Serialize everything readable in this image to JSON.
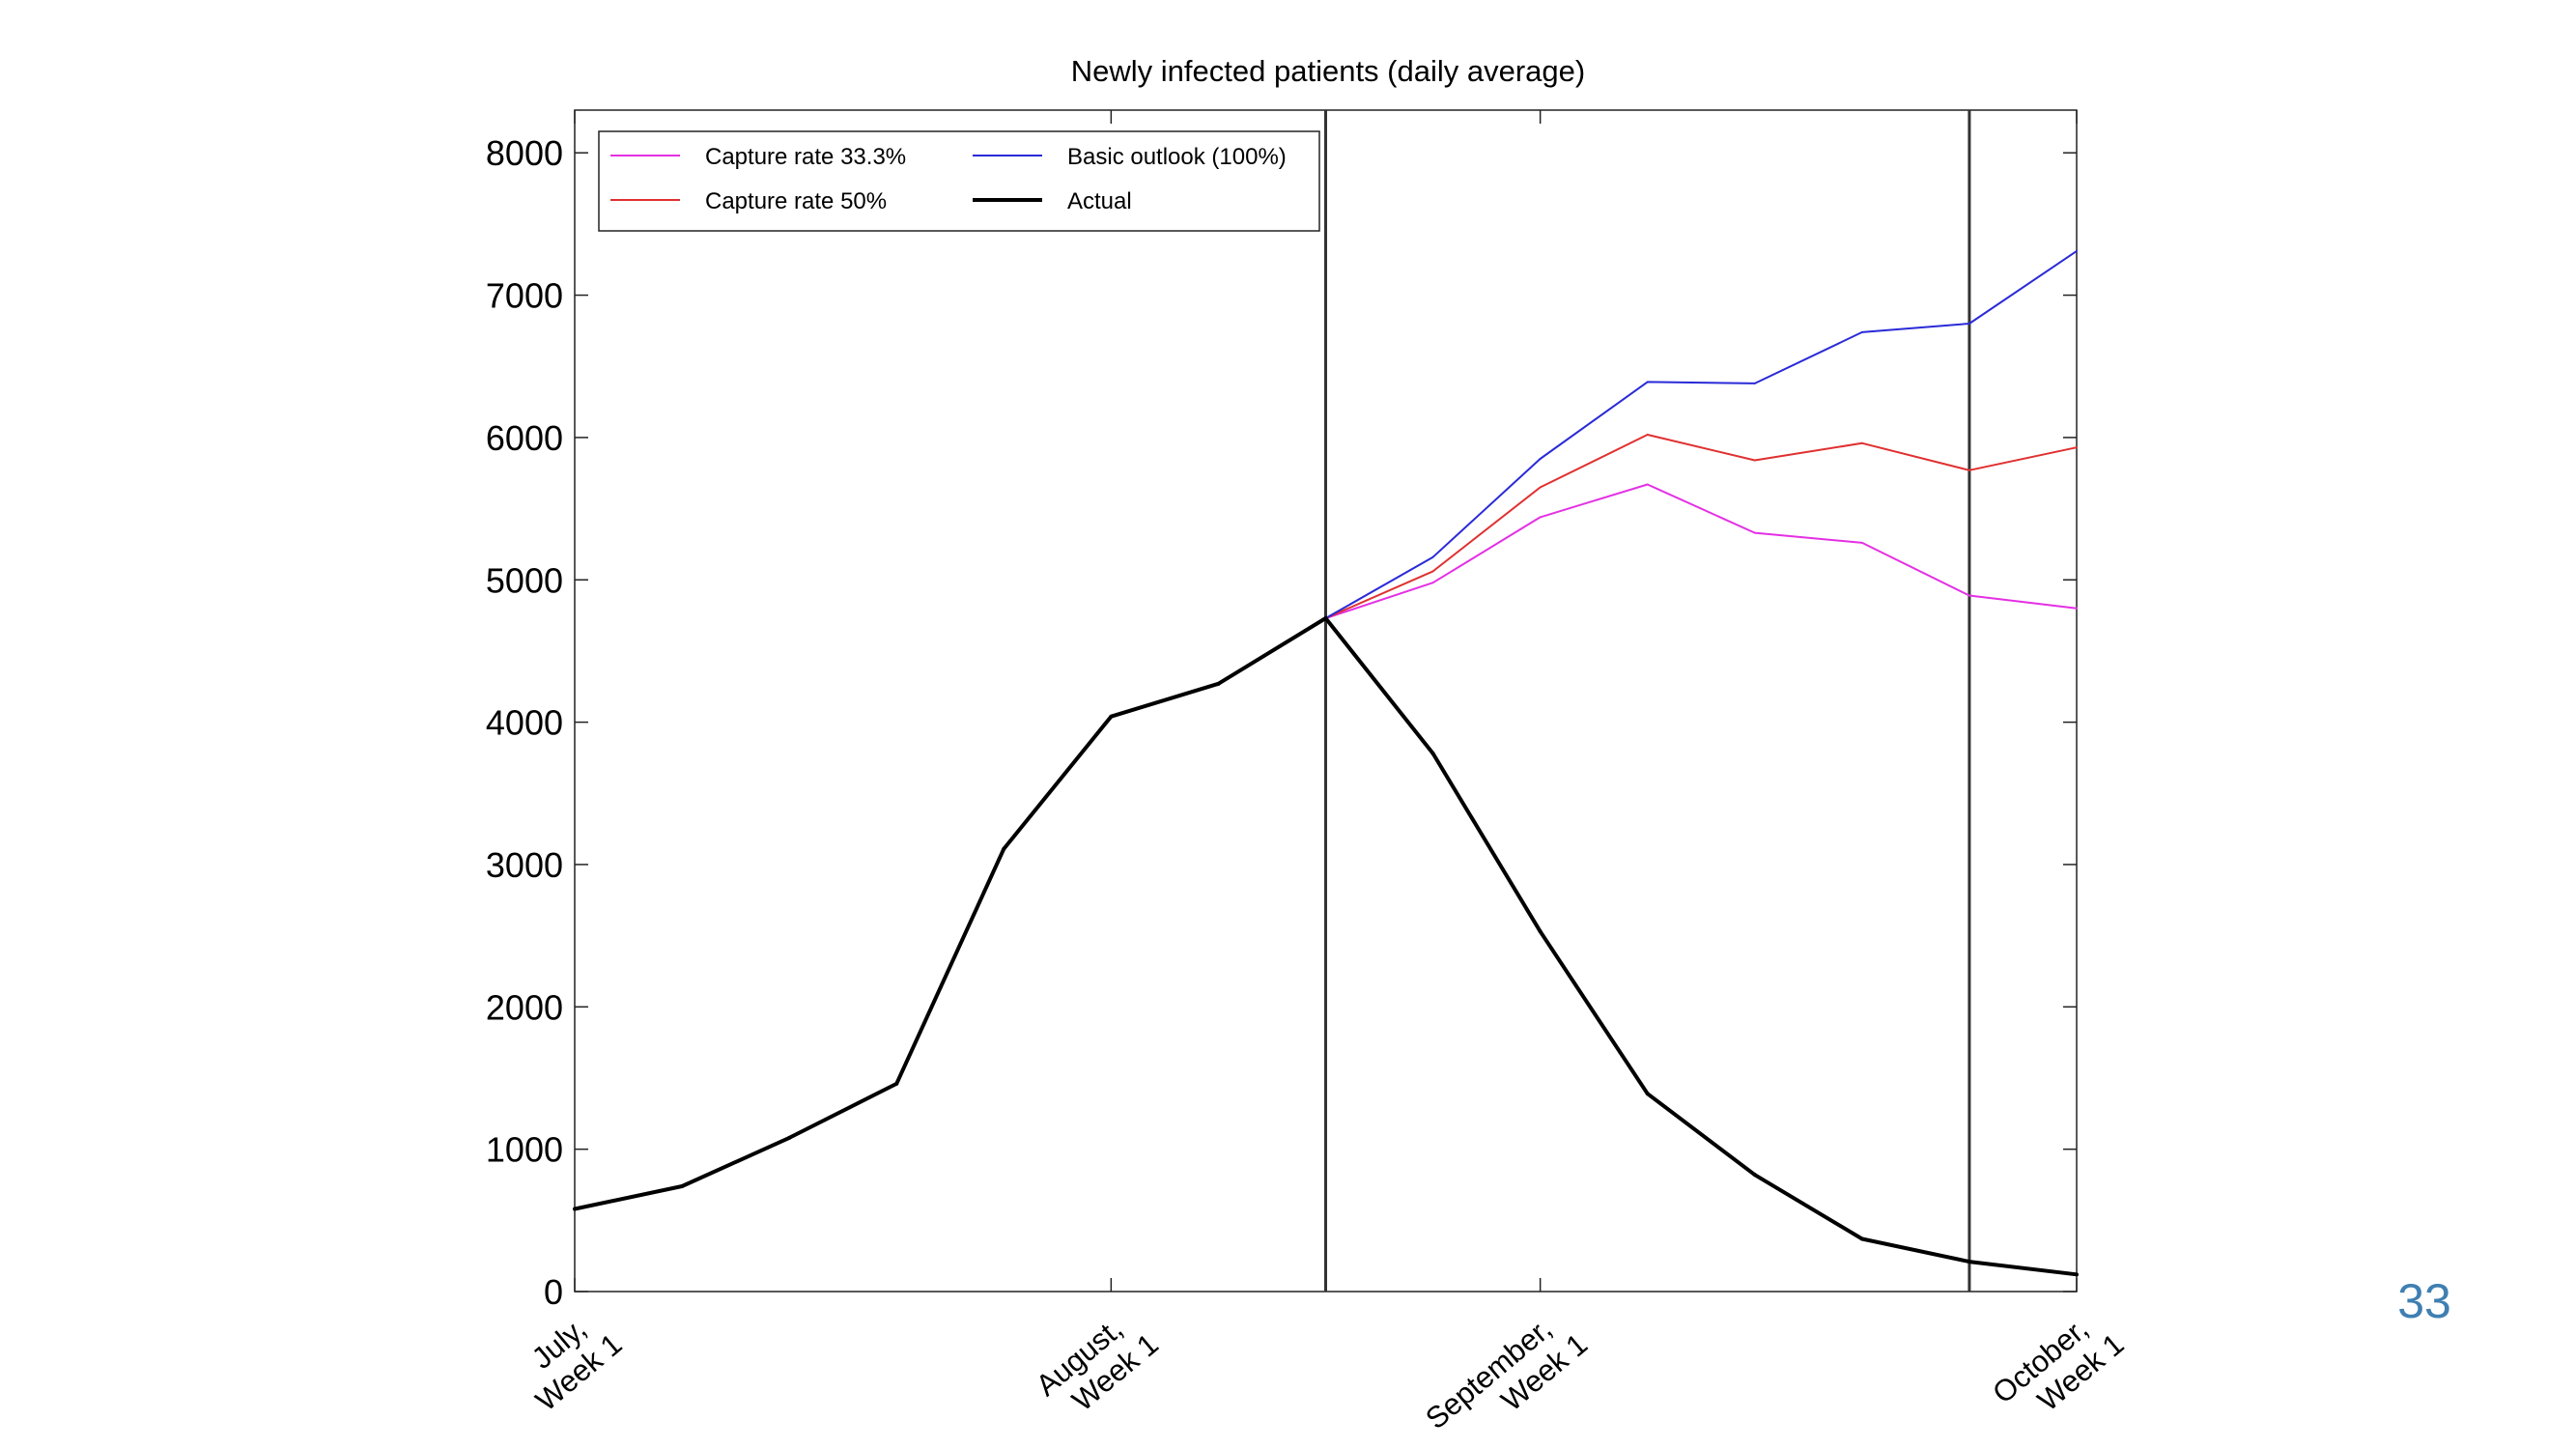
{
  "page": {
    "number": "33"
  },
  "colors": {
    "capture_33": "#e430e4",
    "capture_50": "#e03030",
    "basic": "#2a2ad8",
    "actual": "#000000",
    "divider": "#333333"
  },
  "chart_data": {
    "type": "line",
    "title": "Newly infected patients (daily average)",
    "xlabel": "",
    "ylabel": "",
    "ylim": [
      0,
      8300
    ],
    "xlim": [
      0,
      14
    ],
    "yticks": [
      0,
      1000,
      2000,
      3000,
      4000,
      5000,
      6000,
      7000,
      8000
    ],
    "yticklabels": [
      "0",
      "1000",
      "2000",
      "3000",
      "4000",
      "5000",
      "6000",
      "7000",
      "8000"
    ],
    "xticks": [
      {
        "x": 0,
        "line1": "July,",
        "line2": "Week 1"
      },
      {
        "x": 5,
        "line1": "August,",
        "line2": "Week 1"
      },
      {
        "x": 9,
        "line1": "September,",
        "line2": "Week 1"
      },
      {
        "x": 14,
        "line1": "October,",
        "line2": "Week 1"
      }
    ],
    "vertical_lines": [
      7,
      13
    ],
    "legend_position": "top-left",
    "grid": false,
    "series": [
      {
        "name": "Capture rate 33.3%",
        "color_key": "capture_33",
        "x": [
          7,
          8,
          9,
          10,
          11,
          12,
          13,
          14
        ],
        "y": [
          4730,
          4980,
          5440,
          5670,
          5330,
          5260,
          4890,
          4800
        ]
      },
      {
        "name": "Capture rate 50%",
        "color_key": "capture_50",
        "x": [
          7,
          8,
          9,
          10,
          11,
          12,
          13,
          14
        ],
        "y": [
          4730,
          5060,
          5650,
          6020,
          5840,
          5960,
          5770,
          5930
        ]
      },
      {
        "name": "Basic outlook (100%)",
        "color_key": "basic",
        "x": [
          7,
          8,
          9,
          10,
          11,
          12,
          13,
          14
        ],
        "y": [
          4730,
          5160,
          5850,
          6390,
          6380,
          6740,
          6800,
          7310
        ]
      },
      {
        "name": "Actual",
        "color_key": "actual",
        "x": [
          0,
          1,
          2,
          3,
          4,
          5,
          6,
          7,
          8,
          9,
          10,
          11,
          12,
          13,
          14
        ],
        "y": [
          580,
          740,
          1080,
          1460,
          3110,
          4040,
          4270,
          4730,
          3780,
          2530,
          1390,
          820,
          370,
          210,
          120
        ]
      }
    ]
  }
}
